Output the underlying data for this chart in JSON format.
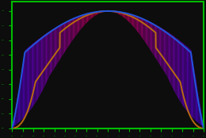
{
  "background_color": "#0d0d0d",
  "border_color": "#00bb00",
  "brown_line_color": "#b86a10",
  "blue_line_color": "#2255dd",
  "tick_color": "#00bb00",
  "n_gradient_strips": 200
}
